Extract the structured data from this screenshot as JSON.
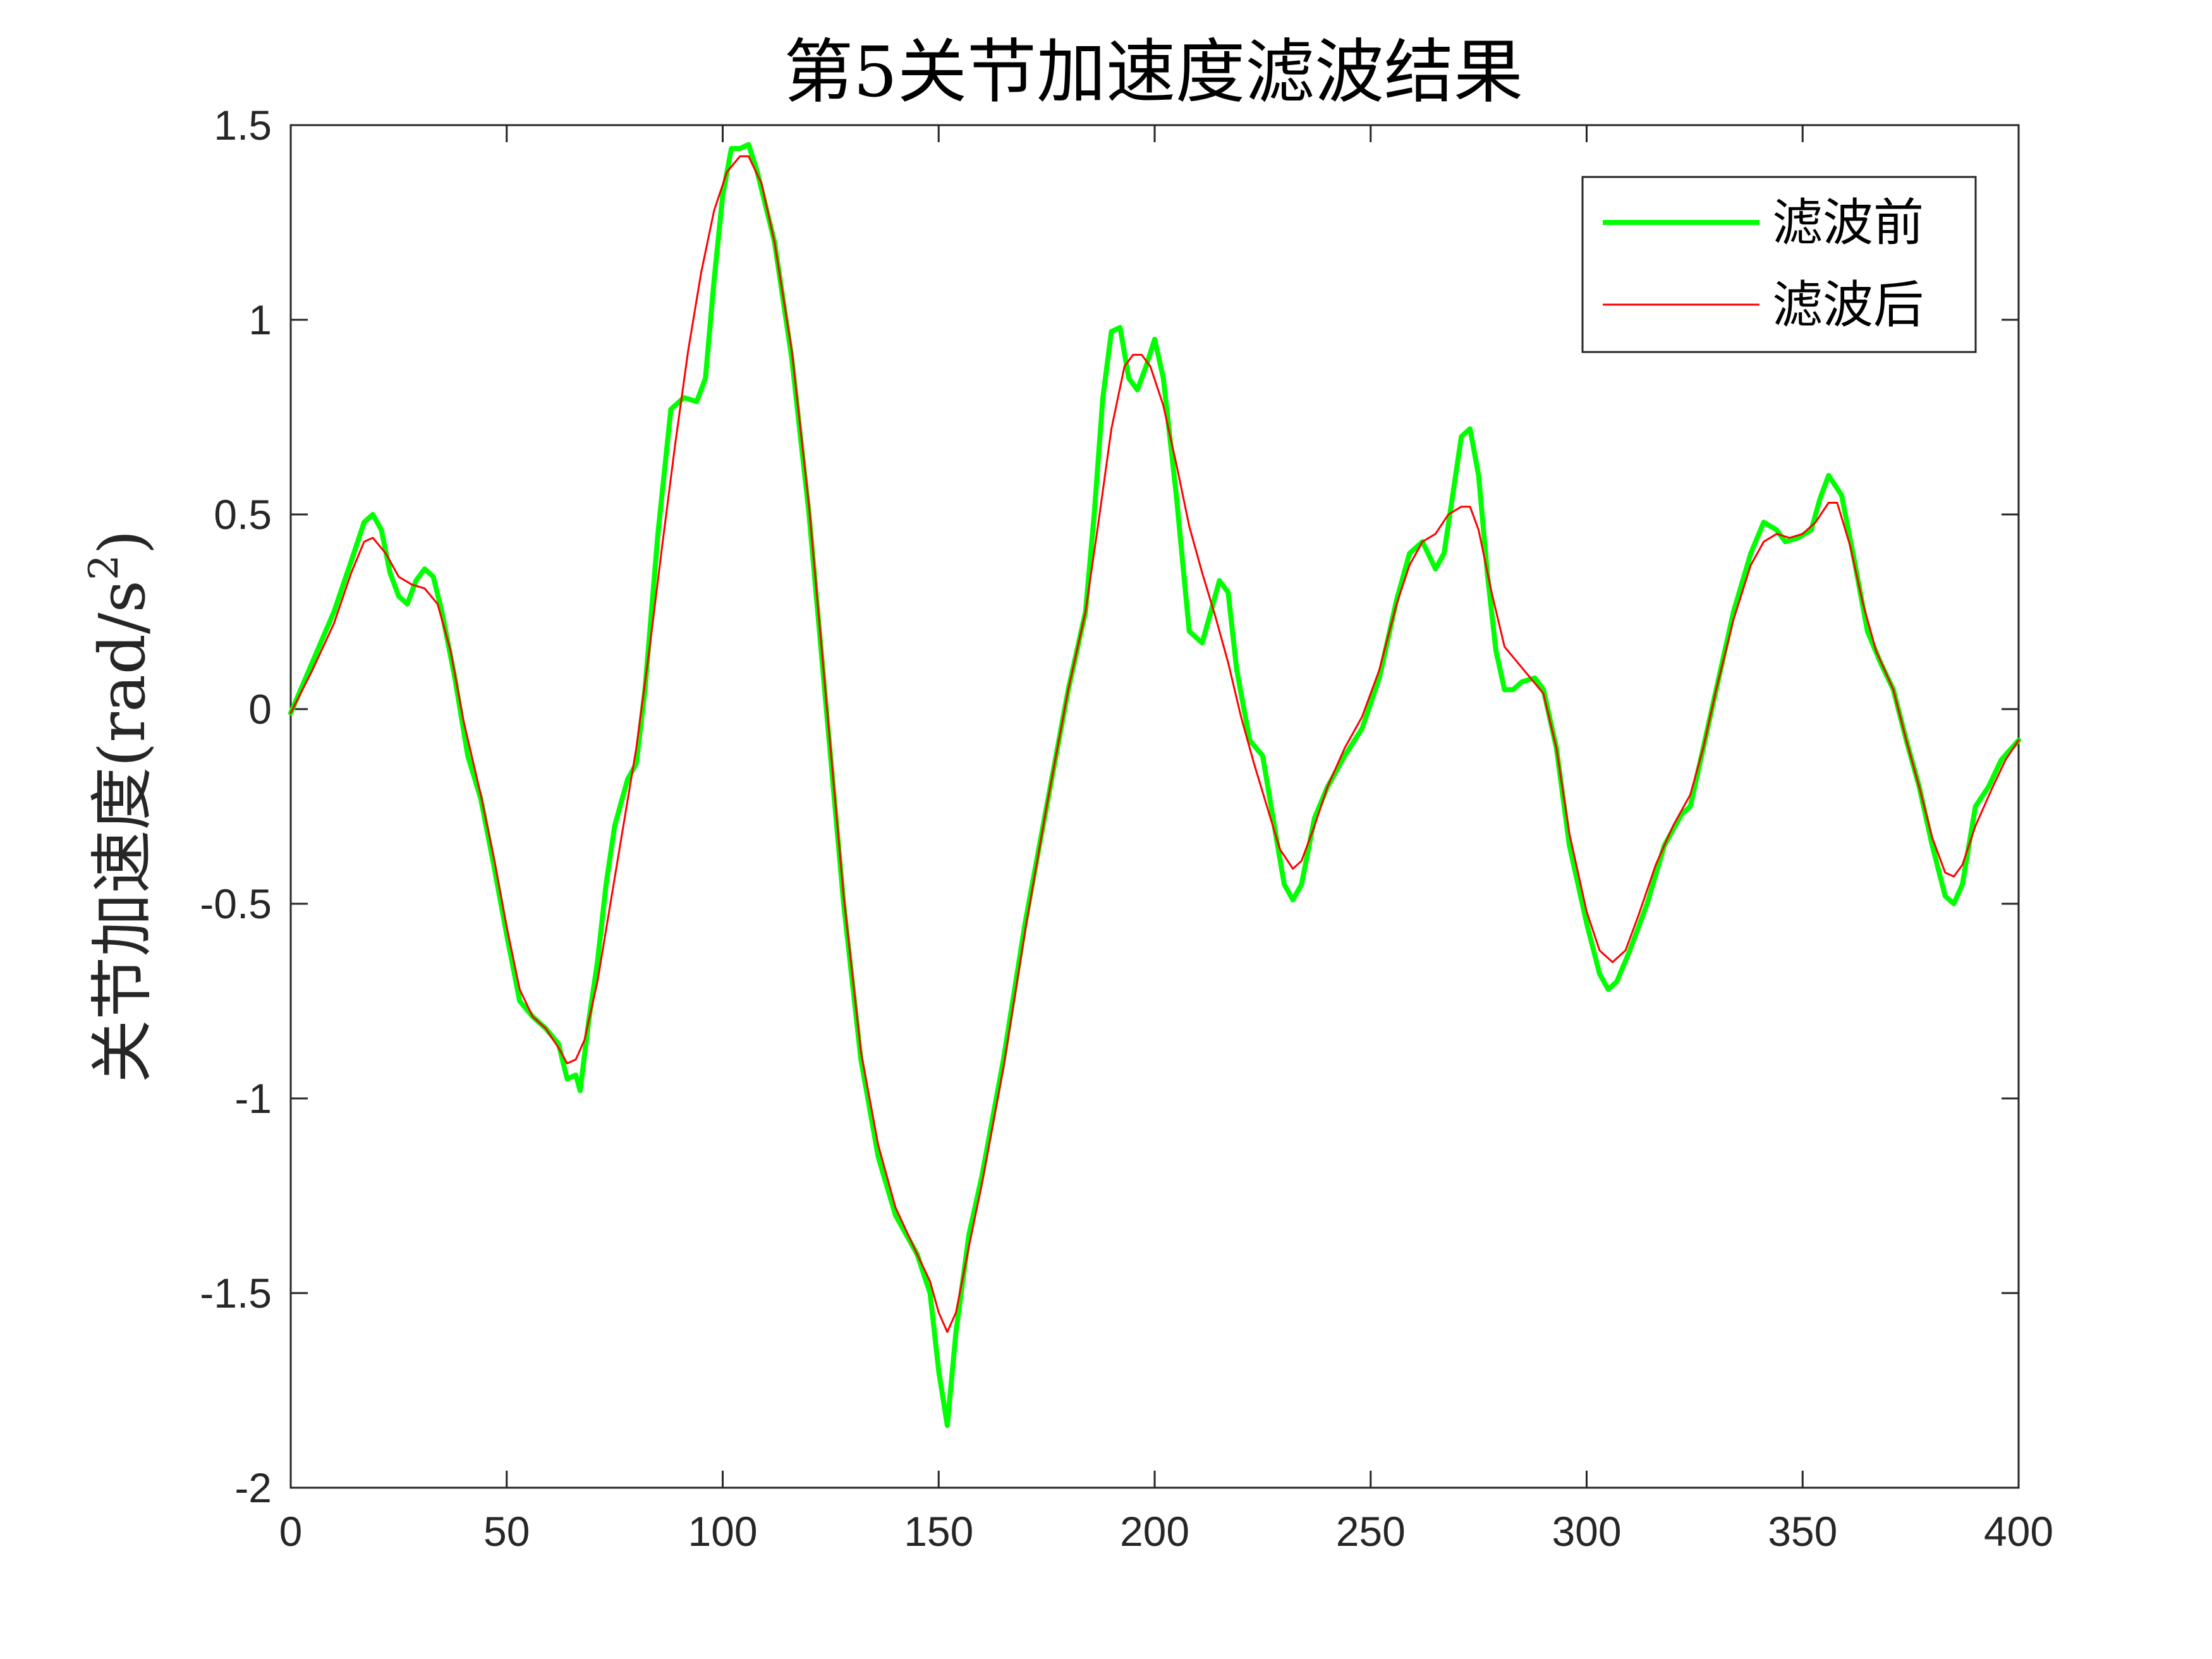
{
  "chart_data": {
    "type": "line",
    "title": "第5关节加速度滤波结果",
    "xlabel": "",
    "ylabel_main": "关节加速度(rad/s",
    "ylabel_sup": "2",
    "ylabel_close": ")",
    "xlim": [
      0,
      400
    ],
    "ylim": [
      -2,
      1.5
    ],
    "xticks": [
      0,
      50,
      100,
      150,
      200,
      250,
      300,
      350,
      400
    ],
    "xtick_labels": [
      "0",
      "50",
      "100",
      "150",
      "200",
      "250",
      "300",
      "350",
      "400"
    ],
    "yticks": [
      -2,
      -1.5,
      -1,
      -0.5,
      0,
      0.5,
      1,
      1.5
    ],
    "ytick_labels": [
      "-2",
      "-1.5",
      "-1",
      "-0.5",
      "0",
      "0.5",
      "1",
      "1.5"
    ],
    "grid": false,
    "legend_position": "top-right",
    "series": [
      {
        "name": "滤波前",
        "color": "#00ff00",
        "points": [
          [
            0,
            -0.01
          ],
          [
            5,
            0.12
          ],
          [
            10,
            0.25
          ],
          [
            14,
            0.38
          ],
          [
            17,
            0.48
          ],
          [
            19,
            0.5
          ],
          [
            21,
            0.46
          ],
          [
            23,
            0.35
          ],
          [
            25,
            0.29
          ],
          [
            27,
            0.27
          ],
          [
            29,
            0.33
          ],
          [
            31,
            0.36
          ],
          [
            33,
            0.34
          ],
          [
            35,
            0.25
          ],
          [
            38,
            0.08
          ],
          [
            41,
            -0.12
          ],
          [
            44,
            -0.23
          ],
          [
            47,
            -0.4
          ],
          [
            50,
            -0.58
          ],
          [
            53,
            -0.75
          ],
          [
            56,
            -0.79
          ],
          [
            59,
            -0.82
          ],
          [
            62,
            -0.86
          ],
          [
            64,
            -0.95
          ],
          [
            66,
            -0.94
          ],
          [
            67,
            -0.98
          ],
          [
            69,
            -0.8
          ],
          [
            71,
            -0.65
          ],
          [
            73,
            -0.45
          ],
          [
            75,
            -0.3
          ],
          [
            78,
            -0.18
          ],
          [
            80,
            -0.14
          ],
          [
            82,
            0.05
          ],
          [
            85,
            0.45
          ],
          [
            88,
            0.77
          ],
          [
            91,
            0.8
          ],
          [
            94,
            0.79
          ],
          [
            96,
            0.85
          ],
          [
            98,
            1.1
          ],
          [
            100,
            1.32
          ],
          [
            102,
            1.44
          ],
          [
            104,
            1.44
          ],
          [
            106,
            1.45
          ],
          [
            108,
            1.38
          ],
          [
            112,
            1.2
          ],
          [
            116,
            0.9
          ],
          [
            120,
            0.5
          ],
          [
            124,
            0.0
          ],
          [
            128,
            -0.5
          ],
          [
            132,
            -0.9
          ],
          [
            136,
            -1.15
          ],
          [
            140,
            -1.3
          ],
          [
            145,
            -1.4
          ],
          [
            148,
            -1.5
          ],
          [
            150,
            -1.7
          ],
          [
            152,
            -1.84
          ],
          [
            154,
            -1.6
          ],
          [
            157,
            -1.35
          ],
          [
            160,
            -1.2
          ],
          [
            165,
            -0.9
          ],
          [
            170,
            -0.55
          ],
          [
            175,
            -0.25
          ],
          [
            180,
            0.05
          ],
          [
            184,
            0.25
          ],
          [
            186,
            0.5
          ],
          [
            188,
            0.8
          ],
          [
            190,
            0.97
          ],
          [
            192,
            0.98
          ],
          [
            194,
            0.85
          ],
          [
            196,
            0.82
          ],
          [
            198,
            0.88
          ],
          [
            200,
            0.95
          ],
          [
            202,
            0.85
          ],
          [
            205,
            0.55
          ],
          [
            208,
            0.2
          ],
          [
            211,
            0.17
          ],
          [
            213,
            0.25
          ],
          [
            215,
            0.33
          ],
          [
            217,
            0.3
          ],
          [
            219,
            0.1
          ],
          [
            222,
            -0.08
          ],
          [
            225,
            -0.12
          ],
          [
            228,
            -0.32
          ],
          [
            230,
            -0.45
          ],
          [
            232,
            -0.49
          ],
          [
            234,
            -0.45
          ],
          [
            237,
            -0.28
          ],
          [
            240,
            -0.2
          ],
          [
            244,
            -0.12
          ],
          [
            248,
            -0.05
          ],
          [
            252,
            0.08
          ],
          [
            256,
            0.28
          ],
          [
            259,
            0.4
          ],
          [
            262,
            0.43
          ],
          [
            265,
            0.36
          ],
          [
            267,
            0.4
          ],
          [
            269,
            0.55
          ],
          [
            271,
            0.7
          ],
          [
            273,
            0.72
          ],
          [
            275,
            0.6
          ],
          [
            277,
            0.35
          ],
          [
            279,
            0.15
          ],
          [
            281,
            0.05
          ],
          [
            283,
            0.05
          ],
          [
            285,
            0.07
          ],
          [
            288,
            0.08
          ],
          [
            290,
            0.05
          ],
          [
            293,
            -0.1
          ],
          [
            296,
            -0.35
          ],
          [
            300,
            -0.55
          ],
          [
            303,
            -0.68
          ],
          [
            305,
            -0.72
          ],
          [
            307,
            -0.7
          ],
          [
            310,
            -0.62
          ],
          [
            314,
            -0.5
          ],
          [
            318,
            -0.35
          ],
          [
            322,
            -0.27
          ],
          [
            324,
            -0.25
          ],
          [
            327,
            -0.1
          ],
          [
            330,
            0.05
          ],
          [
            334,
            0.25
          ],
          [
            338,
            0.4
          ],
          [
            341,
            0.48
          ],
          [
            344,
            0.46
          ],
          [
            346,
            0.43
          ],
          [
            349,
            0.44
          ],
          [
            352,
            0.46
          ],
          [
            354,
            0.54
          ],
          [
            356,
            0.6
          ],
          [
            359,
            0.55
          ],
          [
            362,
            0.38
          ],
          [
            365,
            0.2
          ],
          [
            368,
            0.12
          ],
          [
            371,
            0.05
          ],
          [
            374,
            -0.08
          ],
          [
            377,
            -0.2
          ],
          [
            380,
            -0.35
          ],
          [
            383,
            -0.48
          ],
          [
            385,
            -0.5
          ],
          [
            387,
            -0.45
          ],
          [
            390,
            -0.25
          ],
          [
            393,
            -0.2
          ],
          [
            396,
            -0.13
          ],
          [
            400,
            -0.08
          ]
        ]
      },
      {
        "name": "滤波后",
        "color": "#ff0000",
        "points": [
          [
            0,
            -0.01
          ],
          [
            5,
            0.1
          ],
          [
            10,
            0.22
          ],
          [
            14,
            0.35
          ],
          [
            17,
            0.43
          ],
          [
            19,
            0.44
          ],
          [
            22,
            0.4
          ],
          [
            25,
            0.34
          ],
          [
            28,
            0.32
          ],
          [
            31,
            0.31
          ],
          [
            34,
            0.27
          ],
          [
            37,
            0.15
          ],
          [
            40,
            -0.03
          ],
          [
            44,
            -0.22
          ],
          [
            47,
            -0.38
          ],
          [
            50,
            -0.56
          ],
          [
            53,
            -0.72
          ],
          [
            56,
            -0.79
          ],
          [
            59,
            -0.82
          ],
          [
            62,
            -0.87
          ],
          [
            64,
            -0.91
          ],
          [
            66,
            -0.9
          ],
          [
            68,
            -0.85
          ],
          [
            71,
            -0.7
          ],
          [
            74,
            -0.5
          ],
          [
            77,
            -0.3
          ],
          [
            80,
            -0.1
          ],
          [
            83,
            0.15
          ],
          [
            86,
            0.42
          ],
          [
            89,
            0.68
          ],
          [
            92,
            0.92
          ],
          [
            95,
            1.12
          ],
          [
            98,
            1.28
          ],
          [
            101,
            1.38
          ],
          [
            104,
            1.42
          ],
          [
            106,
            1.42
          ],
          [
            109,
            1.35
          ],
          [
            112,
            1.2
          ],
          [
            116,
            0.92
          ],
          [
            120,
            0.52
          ],
          [
            124,
            0.02
          ],
          [
            128,
            -0.48
          ],
          [
            132,
            -0.88
          ],
          [
            136,
            -1.12
          ],
          [
            140,
            -1.28
          ],
          [
            145,
            -1.4
          ],
          [
            148,
            -1.47
          ],
          [
            150,
            -1.55
          ],
          [
            152,
            -1.6
          ],
          [
            154,
            -1.55
          ],
          [
            157,
            -1.38
          ],
          [
            160,
            -1.22
          ],
          [
            165,
            -0.92
          ],
          [
            170,
            -0.57
          ],
          [
            175,
            -0.25
          ],
          [
            180,
            0.05
          ],
          [
            184,
            0.25
          ],
          [
            187,
            0.48
          ],
          [
            190,
            0.72
          ],
          [
            193,
            0.88
          ],
          [
            195,
            0.91
          ],
          [
            197,
            0.91
          ],
          [
            199,
            0.88
          ],
          [
            202,
            0.78
          ],
          [
            205,
            0.63
          ],
          [
            208,
            0.47
          ],
          [
            211,
            0.35
          ],
          [
            214,
            0.24
          ],
          [
            217,
            0.12
          ],
          [
            220,
            -0.02
          ],
          [
            223,
            -0.14
          ],
          [
            226,
            -0.25
          ],
          [
            229,
            -0.36
          ],
          [
            232,
            -0.41
          ],
          [
            234,
            -0.39
          ],
          [
            237,
            -0.3
          ],
          [
            240,
            -0.2
          ],
          [
            244,
            -0.1
          ],
          [
            248,
            -0.02
          ],
          [
            252,
            0.1
          ],
          [
            256,
            0.27
          ],
          [
            259,
            0.37
          ],
          [
            262,
            0.43
          ],
          [
            265,
            0.45
          ],
          [
            268,
            0.5
          ],
          [
            271,
            0.52
          ],
          [
            273,
            0.52
          ],
          [
            275,
            0.46
          ],
          [
            278,
            0.3
          ],
          [
            281,
            0.16
          ],
          [
            284,
            0.12
          ],
          [
            287,
            0.08
          ],
          [
            290,
            0.04
          ],
          [
            293,
            -0.1
          ],
          [
            296,
            -0.32
          ],
          [
            300,
            -0.52
          ],
          [
            303,
            -0.62
          ],
          [
            306,
            -0.65
          ],
          [
            309,
            -0.62
          ],
          [
            312,
            -0.53
          ],
          [
            316,
            -0.4
          ],
          [
            320,
            -0.3
          ],
          [
            324,
            -0.22
          ],
          [
            327,
            -0.1
          ],
          [
            330,
            0.05
          ],
          [
            334,
            0.23
          ],
          [
            338,
            0.37
          ],
          [
            341,
            0.43
          ],
          [
            344,
            0.45
          ],
          [
            347,
            0.44
          ],
          [
            350,
            0.45
          ],
          [
            353,
            0.48
          ],
          [
            356,
            0.53
          ],
          [
            358,
            0.53
          ],
          [
            361,
            0.42
          ],
          [
            364,
            0.27
          ],
          [
            367,
            0.15
          ],
          [
            371,
            0.05
          ],
          [
            374,
            -0.08
          ],
          [
            377,
            -0.2
          ],
          [
            380,
            -0.33
          ],
          [
            383,
            -0.42
          ],
          [
            385,
            -0.43
          ],
          [
            387,
            -0.4
          ],
          [
            390,
            -0.3
          ],
          [
            394,
            -0.2
          ],
          [
            397,
            -0.13
          ],
          [
            400,
            -0.08
          ]
        ]
      }
    ]
  }
}
